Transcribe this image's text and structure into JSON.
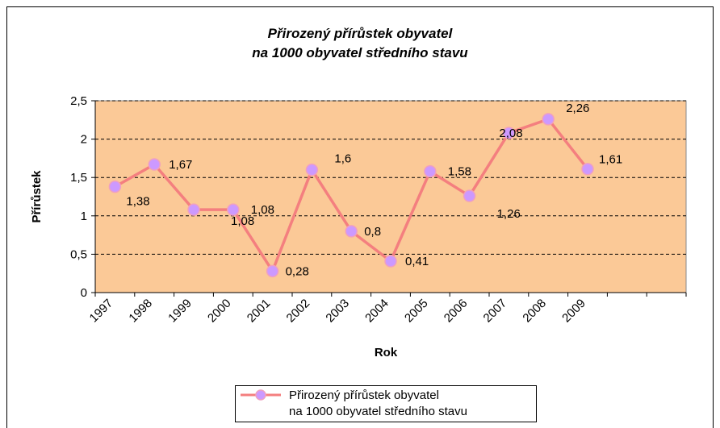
{
  "chart_data": {
    "type": "line",
    "title": "Přirozený přírůstek obyvatel\nna 1000 obyvatel středního stavu",
    "x_label": "Rok",
    "y_label": "Přírůstek",
    "categories": [
      "1997",
      "1998",
      "1999",
      "2000",
      "2001",
      "2002",
      "2003",
      "2004",
      "2005",
      "2006",
      "2007",
      "2008",
      "2009",
      null,
      null
    ],
    "series": [
      {
        "name": "Přirozený přírůstek obyvatel\nna 1000 obyvatel středního stavu",
        "color": "#f47f7f",
        "marker_color": "#cc99ff",
        "values": [
          1.38,
          1.67,
          1.08,
          1.08,
          0.28,
          1.6,
          0.8,
          0.41,
          1.58,
          1.26,
          2.08,
          2.26,
          1.61,
          null,
          null
        ],
        "value_labels": [
          "1,38",
          "1,67",
          "1,08",
          "1,08",
          "0,28",
          "1,6",
          "0,8",
          "0,41",
          "1,58",
          "1,26",
          "2,08",
          "2,26",
          "1,61",
          null,
          null
        ]
      }
    ],
    "ylim": [
      0,
      2.5
    ],
    "yticks": [
      0,
      {
        "value": 0.5,
        "label": "0,5"
      },
      1,
      {
        "value": 1.5,
        "label": "1,5"
      },
      2,
      {
        "value": 2.5,
        "label": "2,5"
      }
    ],
    "grid": true,
    "plot_background": "#fbc997",
    "legend": "bottom"
  }
}
